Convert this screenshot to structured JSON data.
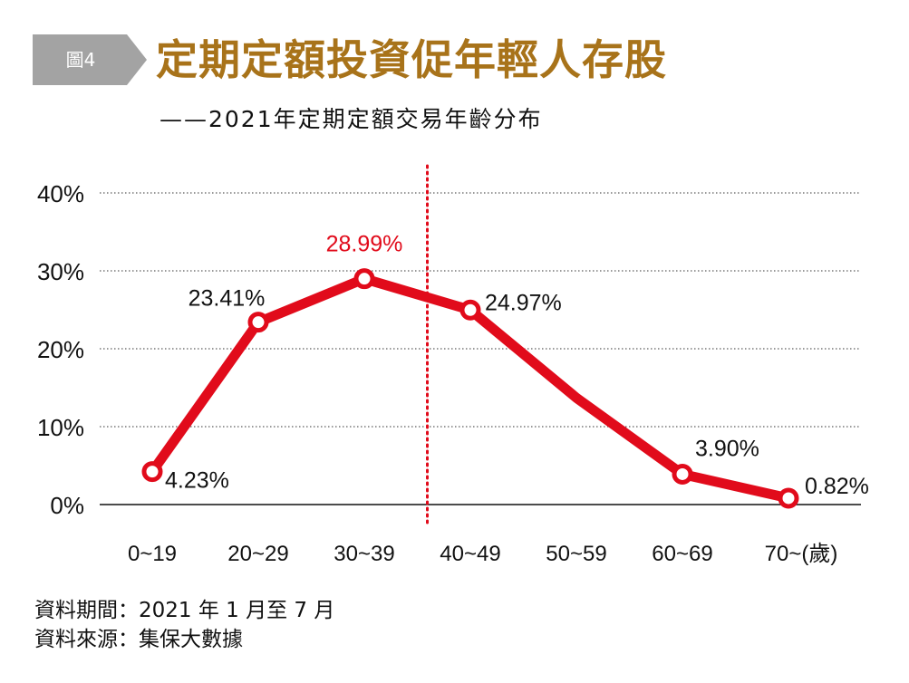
{
  "header": {
    "badge": "圖4",
    "title": "定期定額投資促年輕人存股",
    "subtitle": "——2021年定期定額交易年齡分布"
  },
  "colors": {
    "line": "#e10b1b",
    "highlight_label": "#e10b1b",
    "divider": "#e10b1b",
    "title": "#a8731a",
    "badge": "#a3a3a3"
  },
  "chart_data": {
    "type": "line",
    "title": "",
    "xlabel": "",
    "ylabel": "",
    "categories": [
      "0~19",
      "20~29",
      "30~39",
      "40~49",
      "50~59",
      "60~69",
      "70~(歲)"
    ],
    "series": [
      {
        "values": [
          4.23,
          23.41,
          28.99,
          24.97,
          13.7,
          3.9,
          0.82
        ]
      }
    ],
    "data_labels": [
      "4.23%",
      "23.41%",
      "28.99%",
      "24.97%",
      "",
      "3.90%",
      "0.82%"
    ],
    "highlight_index": 2,
    "divider_between": [
      2,
      3
    ],
    "ylim": [
      0,
      40
    ],
    "yticks": [
      0,
      10,
      20,
      30,
      40
    ],
    "ytick_labels": [
      "0%",
      "10%",
      "20%",
      "30%",
      "40%"
    ],
    "grid": "dotted horizontal",
    "legend": "none"
  },
  "notes": {
    "period": "資料期間：2021 年 1 月至 7 月",
    "source": "資料來源：集保大數據"
  }
}
